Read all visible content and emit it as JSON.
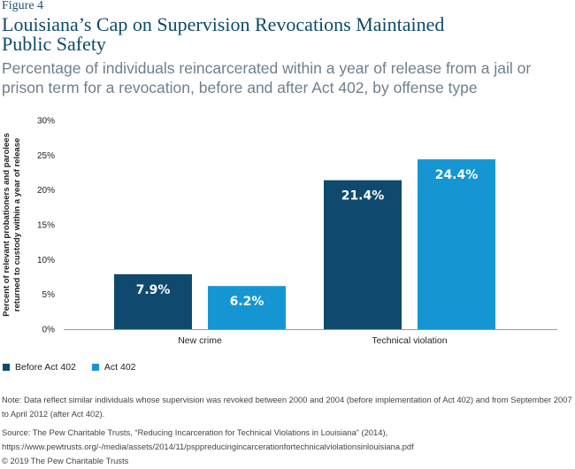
{
  "figure_label": "Figure 4",
  "title": "Louisiana’s Cap on Supervision Revocations Maintained Public Safety",
  "subtitle": "Percentage of individuals reincarcerated within a year of release from a jail or prison term for a revocation, before and after Act 402, by offense type",
  "chart_data": {
    "type": "bar",
    "categories": [
      "New crime",
      "Technical violation"
    ],
    "series": [
      {
        "name": "Before Act 402",
        "values": [
          7.9,
          21.4
        ],
        "labels": [
          "7.9%",
          "21.4%"
        ],
        "color": "#0f4a6e"
      },
      {
        "name": "Act 402",
        "values": [
          6.2,
          24.4
        ],
        "labels": [
          "6.2%",
          "24.4%"
        ],
        "color": "#1596d2"
      }
    ],
    "ylabel_lines": [
      "Percent of relevant probationers and parolees",
      "returned to custody within a year of release"
    ],
    "ylim": [
      0,
      30
    ],
    "yticks": [
      0,
      5,
      10,
      15,
      20,
      25,
      30
    ],
    "ytick_labels": [
      "0%",
      "5%",
      "10%",
      "15%",
      "20%",
      "25%",
      "30%"
    ],
    "grid": false,
    "legend_position": "bottom-left"
  },
  "note": "Note: Data reflect similar individuals whose supervision was revoked between 2000 and 2004 (before implementation of Act 402) and from September 2007 to April 2012 (after Act 402).",
  "source": "Source: The Pew Charitable Trusts, “Reducing Incarceration for Technical Violations in Louisiana” (2014), https://www.pewtrusts.org/-/media/assets/2014/11/psppreducingincarcerationfortechnicalviolationsinlouisiana.pdf",
  "copyright": "© 2019 The Pew Charitable Trusts"
}
